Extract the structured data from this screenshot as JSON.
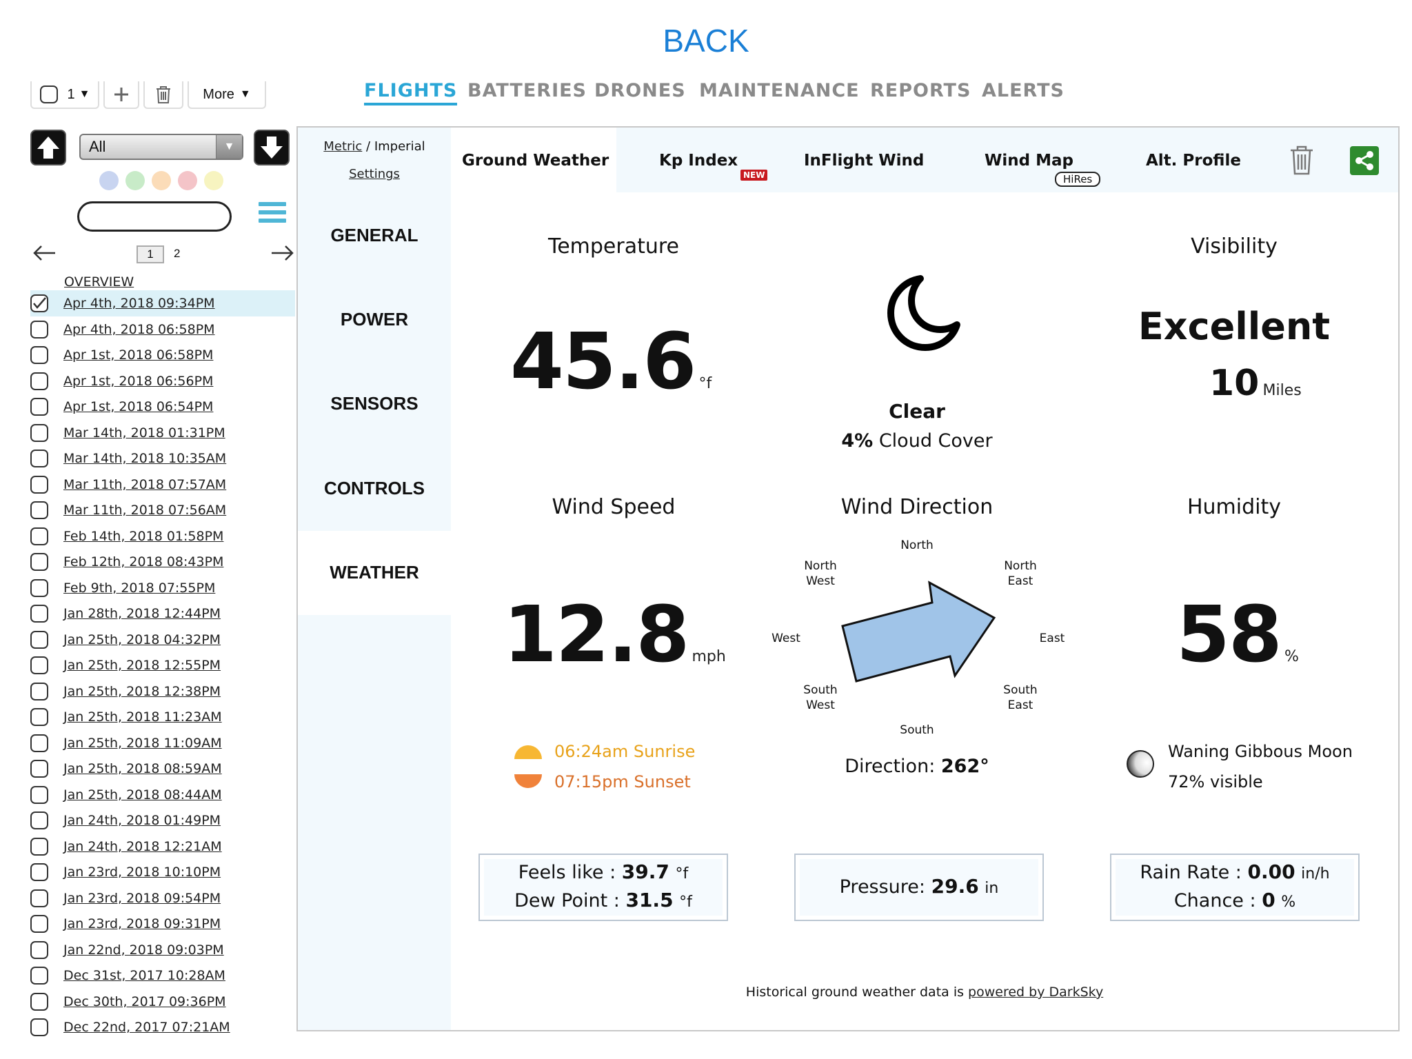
{
  "back": "BACK",
  "toolbar": {
    "count": "1",
    "more": "More"
  },
  "nav": [
    "FLIGHTS",
    "BATTERIES",
    "DRONES",
    "MAINTENANCE",
    "REPORTS",
    "ALERTS"
  ],
  "sidebar": {
    "filter": "All",
    "dot_colors": [
      "#c8d4f0",
      "#c8ebc8",
      "#fbdcb8",
      "#f4c4c8",
      "#f7f4c0"
    ],
    "pages": [
      "1",
      "2"
    ],
    "overview": "OVERVIEW",
    "flights": [
      "Apr 4th, 2018 09:34PM",
      "Apr 4th, 2018 06:58PM",
      "Apr 1st, 2018 06:58PM",
      "Apr 1st, 2018 06:56PM",
      "Apr 1st, 2018 06:54PM",
      "Mar 14th, 2018 01:31PM",
      "Mar 14th, 2018 10:35AM",
      "Mar 11th, 2018 07:57AM",
      "Mar 11th, 2018 07:56AM",
      "Feb 14th, 2018 01:58PM",
      "Feb 12th, 2018 08:43PM",
      "Feb 9th, 2018 07:55PM",
      "Jan 28th, 2018 12:44PM",
      "Jan 25th, 2018 04:32PM",
      "Jan 25th, 2018 12:55PM",
      "Jan 25th, 2018 12:38PM",
      "Jan 25th, 2018 11:23AM",
      "Jan 25th, 2018 11:09AM",
      "Jan 25th, 2018 08:59AM",
      "Jan 25th, 2018 08:44AM",
      "Jan 24th, 2018 01:49PM",
      "Jan 24th, 2018 12:21AM",
      "Jan 23rd, 2018 10:10PM",
      "Jan 23rd, 2018 09:54PM",
      "Jan 23rd, 2018 09:31PM",
      "Jan 22nd, 2018 09:03PM",
      "Dec 31st, 2017 10:28AM",
      "Dec 30th, 2017 09:36PM",
      "Dec 22nd, 2017 07:21AM"
    ]
  },
  "units": {
    "metric": "Metric",
    "sep": " / ",
    "imperial": "Imperial",
    "settings": "Settings"
  },
  "leftnav": [
    "GENERAL",
    "POWER",
    "SENSORS",
    "CONTROLS",
    "WEATHER"
  ],
  "subtabs": {
    "ground": "Ground Weather",
    "kp": "Kp Index",
    "new_badge": "NEW",
    "inflight": "InFlight Wind",
    "windmap": "Wind Map",
    "hires": "HiRes",
    "alt": "Alt. Profile"
  },
  "weather": {
    "temperature_label": "Temperature",
    "temperature": "45.6",
    "temp_unit": "°f",
    "condition": "Clear",
    "cloud_value": "4%",
    "cloud_text": "Cloud Cover",
    "visibility_label": "Visibility",
    "visibility": "Excellent",
    "visibility_value": "10",
    "visibility_unit": "Miles",
    "wind_speed_label": "Wind Speed",
    "wind_speed": "12.8",
    "wind_unit": "mph",
    "wind_dir_label": "Wind Direction",
    "compass": {
      "n": "North",
      "ne": [
        "North",
        "East"
      ],
      "e": "East",
      "se": [
        "South",
        "East"
      ],
      "s": "South",
      "sw": [
        "South",
        "West"
      ],
      "w": "West",
      "nw": [
        "North",
        "West"
      ]
    },
    "direction_label": "Direction:",
    "direction_value": "262°",
    "humidity_label": "Humidity",
    "humidity": "58",
    "humidity_unit": "%",
    "sunrise": "06:24am Sunrise",
    "sunset": "07:15pm Sunset",
    "moon_phase": "Waning Gibbous Moon",
    "moon_visible": "72% visible",
    "feels_label": "Feels like :",
    "feels_value": "39.7",
    "dew_label": "Dew Point :",
    "dew_value": "31.5",
    "deg_unit": "°f",
    "pressure_label": "Pressure:",
    "pressure_value": "29.6",
    "pressure_unit": "in",
    "rain_label": "Rain Rate :",
    "rain_value": "0.00",
    "rain_unit": "in/h",
    "chance_label": "Chance :",
    "chance_value": "0",
    "chance_unit": "%",
    "footer_text": "Historical ground weather data is",
    "footer_link": "powered by DarkSky"
  },
  "colors": {
    "accent": "#2aa6d6",
    "back": "#1a7fd6",
    "sunrise": "#e8a21a",
    "sunset": "#d9702a",
    "arrow": "#a0c4e8"
  }
}
